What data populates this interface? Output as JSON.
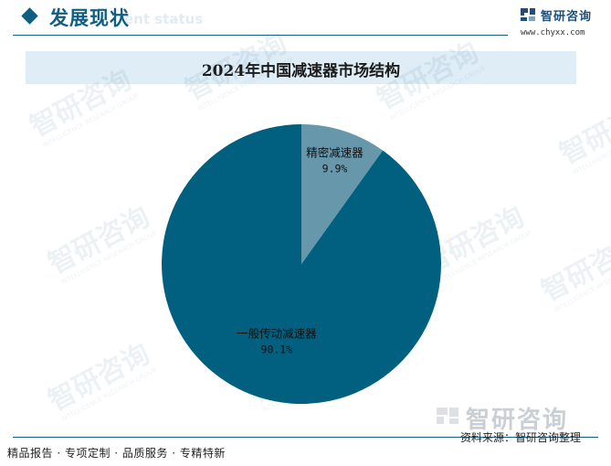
{
  "header": {
    "section_title": "发展现状",
    "section_subtitle": "ent status",
    "logo_icon": "chyxx-logo-icon",
    "logo_name": "智研咨询",
    "logo_url": "www.chyxx.com"
  },
  "watermark": {
    "text": "智研咨询",
    "sub": "INTELLIGENCE RESEARCH GROUP"
  },
  "chart_data": {
    "type": "pie",
    "title": "2024年中国减速器市场结构",
    "categories": [
      "精密减速器",
      "一般传动减速器"
    ],
    "values": [
      9.9,
      90.1
    ],
    "value_labels": [
      "9.9%",
      "90.1%"
    ],
    "colors": [
      "#6797ab",
      "#01607f"
    ],
    "start_angle_deg": 0,
    "direction": "clockwise"
  },
  "footer": {
    "left_text": "精品报告 · 专项定制 · 品质服务 · 专精特新",
    "source_text": "资料来源：智研咨询整理"
  }
}
